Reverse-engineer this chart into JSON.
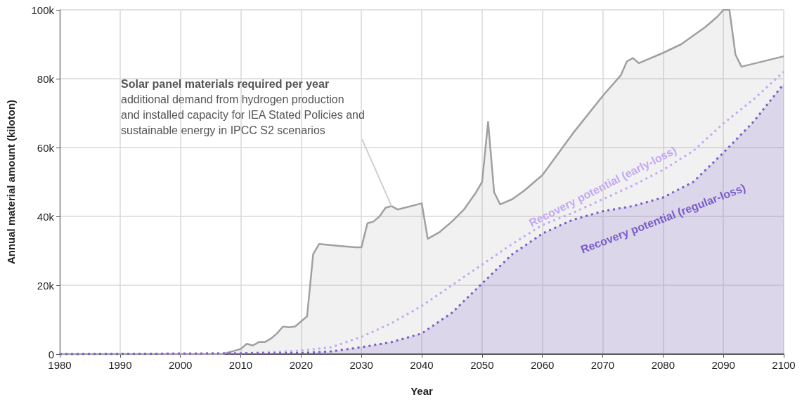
{
  "chart_data": {
    "type": "area",
    "xlabel": "Year",
    "ylabel": "Annual material amount (kiloton)",
    "xlim": [
      1980,
      2100
    ],
    "xticks": [
      1980,
      1990,
      2000,
      2010,
      2020,
      2030,
      2040,
      2050,
      2060,
      2070,
      2080,
      2090,
      2100
    ],
    "ylim": [
      0,
      100000
    ],
    "yticks": [
      0,
      {
        "value": 20000,
        "label": "20k"
      },
      {
        "value": 40000,
        "label": "40k"
      },
      {
        "value": 60000,
        "label": "60k"
      },
      {
        "value": 80000,
        "label": "80k"
      },
      {
        "value": 100000,
        "label": "100k"
      }
    ],
    "grid": true,
    "legend": false,
    "marker": "none",
    "annotations": [
      {
        "text": "Solar panel materials required per year\nadditional demand from hydrogen production\nand installed capacity for IEA Stated Policies and\nsustainable energy in IPCC S2 scenarios",
        "x": 2035,
        "y": 43000
      }
    ],
    "series": [
      {
        "color": "#a0a0a0",
        "line_style": "solid",
        "x": [
          1980,
          2007,
          2008,
          2009,
          2010,
          2011,
          2012,
          2013,
          2014,
          2015,
          2016,
          2017,
          2018,
          2019,
          2020,
          2021,
          2022,
          2023,
          2026,
          2029,
          2030,
          2031,
          2032,
          2033,
          2034,
          2035,
          2036,
          2040,
          2041,
          2043,
          2045,
          2047,
          2049,
          2050,
          2051,
          2052,
          2053,
          2055,
          2057,
          2060,
          2065,
          2070,
          2073,
          2074,
          2075,
          2076,
          2080,
          2083,
          2087,
          2089,
          2090,
          2091,
          2092,
          2093,
          2100
        ],
        "values": [
          0,
          0,
          500,
          1000,
          1500,
          3000,
          2500,
          3500,
          3500,
          4500,
          6000,
          8000,
          7800,
          8000,
          9500,
          11000,
          29000,
          32000,
          31500,
          31000,
          31000,
          38000,
          38500,
          40000,
          42500,
          43000,
          42000,
          43800,
          33500,
          35500,
          38500,
          42000,
          47000,
          50000,
          67500,
          47000,
          43500,
          45000,
          47500,
          52000,
          64000,
          75000,
          81000,
          85000,
          86000,
          84500,
          87500,
          90000,
          95000,
          98000,
          100000,
          100000,
          87000,
          83500,
          86500
        ]
      },
      {
        "type": "line",
        "name": "Recovery potential (early-loss)",
        "color": "#c4a8f5",
        "line_style": "dotted",
        "x": [
          1980,
          2010,
          2020,
          2025,
          2030,
          2035,
          2040,
          2045,
          2050,
          2055,
          2060,
          2065,
          2070,
          2075,
          2080,
          2085,
          2090,
          2095,
          2100
        ],
        "values": [
          0,
          200,
          1000,
          2000,
          5000,
          9000,
          14000,
          20000,
          26000,
          32000,
          37500,
          41000,
          45000,
          49000,
          53500,
          59000,
          67000,
          74000,
          82000
        ]
      },
      {
        "name": "Recovery potential (regular-loss)",
        "color": "#7b5cc9",
        "line_style": "dotted",
        "x": [
          1980,
          2020,
          2025,
          2030,
          2035,
          2040,
          2045,
          2050,
          2055,
          2060,
          2065,
          2070,
          2075,
          2080,
          2085,
          2090,
          2095,
          2100
        ],
        "values": [
          0,
          300,
          800,
          2000,
          3500,
          6000,
          12000,
          20500,
          29000,
          35000,
          39000,
          41500,
          43000,
          45500,
          50000,
          58500,
          67500,
          78500
        ]
      }
    ]
  }
}
